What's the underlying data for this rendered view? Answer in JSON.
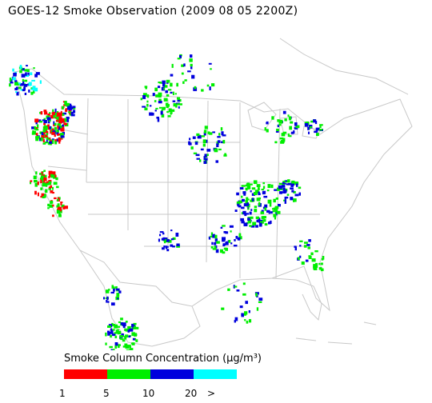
{
  "title": "GOES-12 Smoke Observation (2009 08 05  2200Z)",
  "legend": {
    "title": "Smoke Column Concentration (μg/m³)",
    "colors": [
      "#ff0000",
      "#00ee00",
      "#0000dd",
      "#00ffff"
    ],
    "tick_labels": [
      "1",
      "5",
      "10",
      "20",
      ">"
    ]
  },
  "map": {
    "region": "United States",
    "land_color": "#ffffff",
    "boundary_color": "#c8c8c8"
  }
}
